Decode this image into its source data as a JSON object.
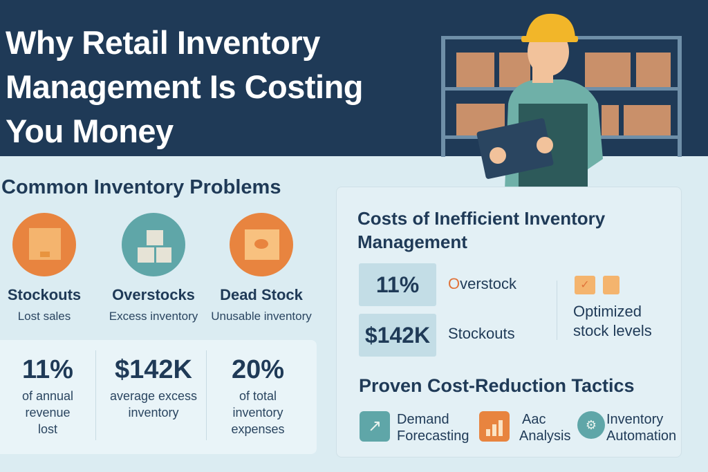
{
  "header": {
    "title": "Why Retail Inventory Management Is Costing You Money"
  },
  "problems": {
    "title": "Common Inventory Problems",
    "items": [
      {
        "label": "Stockouts",
        "sub": "Lost sales",
        "icon": "box-icon",
        "color": "#e8843f"
      },
      {
        "label": "Overstocks",
        "sub": "Excess inventory",
        "icon": "stacked-boxes-icon",
        "color": "#5fa6a8"
      },
      {
        "label": "Dead Stock",
        "sub": "Unusable inventory",
        "icon": "fish-box-icon",
        "color": "#e8843f"
      }
    ]
  },
  "stats": [
    {
      "value": "11%",
      "desc": "of annual revenue lost"
    },
    {
      "value": "$142K",
      "desc": "average excess inventory"
    },
    {
      "value": "20%",
      "desc": "of total inventory expenses"
    }
  ],
  "costs": {
    "title": "Costs of Inefficient Inventory Management",
    "rows": [
      {
        "value": "11%",
        "label_first": "O",
        "label_rest": "verstock"
      },
      {
        "value": "$142K",
        "label": "Stockouts"
      }
    ],
    "optimized": "Optimized stock levels"
  },
  "tactics": {
    "title": "Proven Cost-Reduction Tactics",
    "items": [
      {
        "line1": "Demand",
        "line2": "Forecasting",
        "icon": "trend-up-icon",
        "color": "#5fa6a8"
      },
      {
        "line1": "Aac",
        "line2": "Analysis",
        "icon": "bar-chart-icon",
        "color": "#e8843f"
      },
      {
        "line1": "Inventory",
        "line2": "Automation",
        "icon": "automation-icon",
        "color": "#5fa6a8"
      }
    ]
  },
  "colors": {
    "navy": "#1f3a57",
    "orange": "#e8843f",
    "teal": "#5fa6a8",
    "background": "#dbecf2"
  }
}
